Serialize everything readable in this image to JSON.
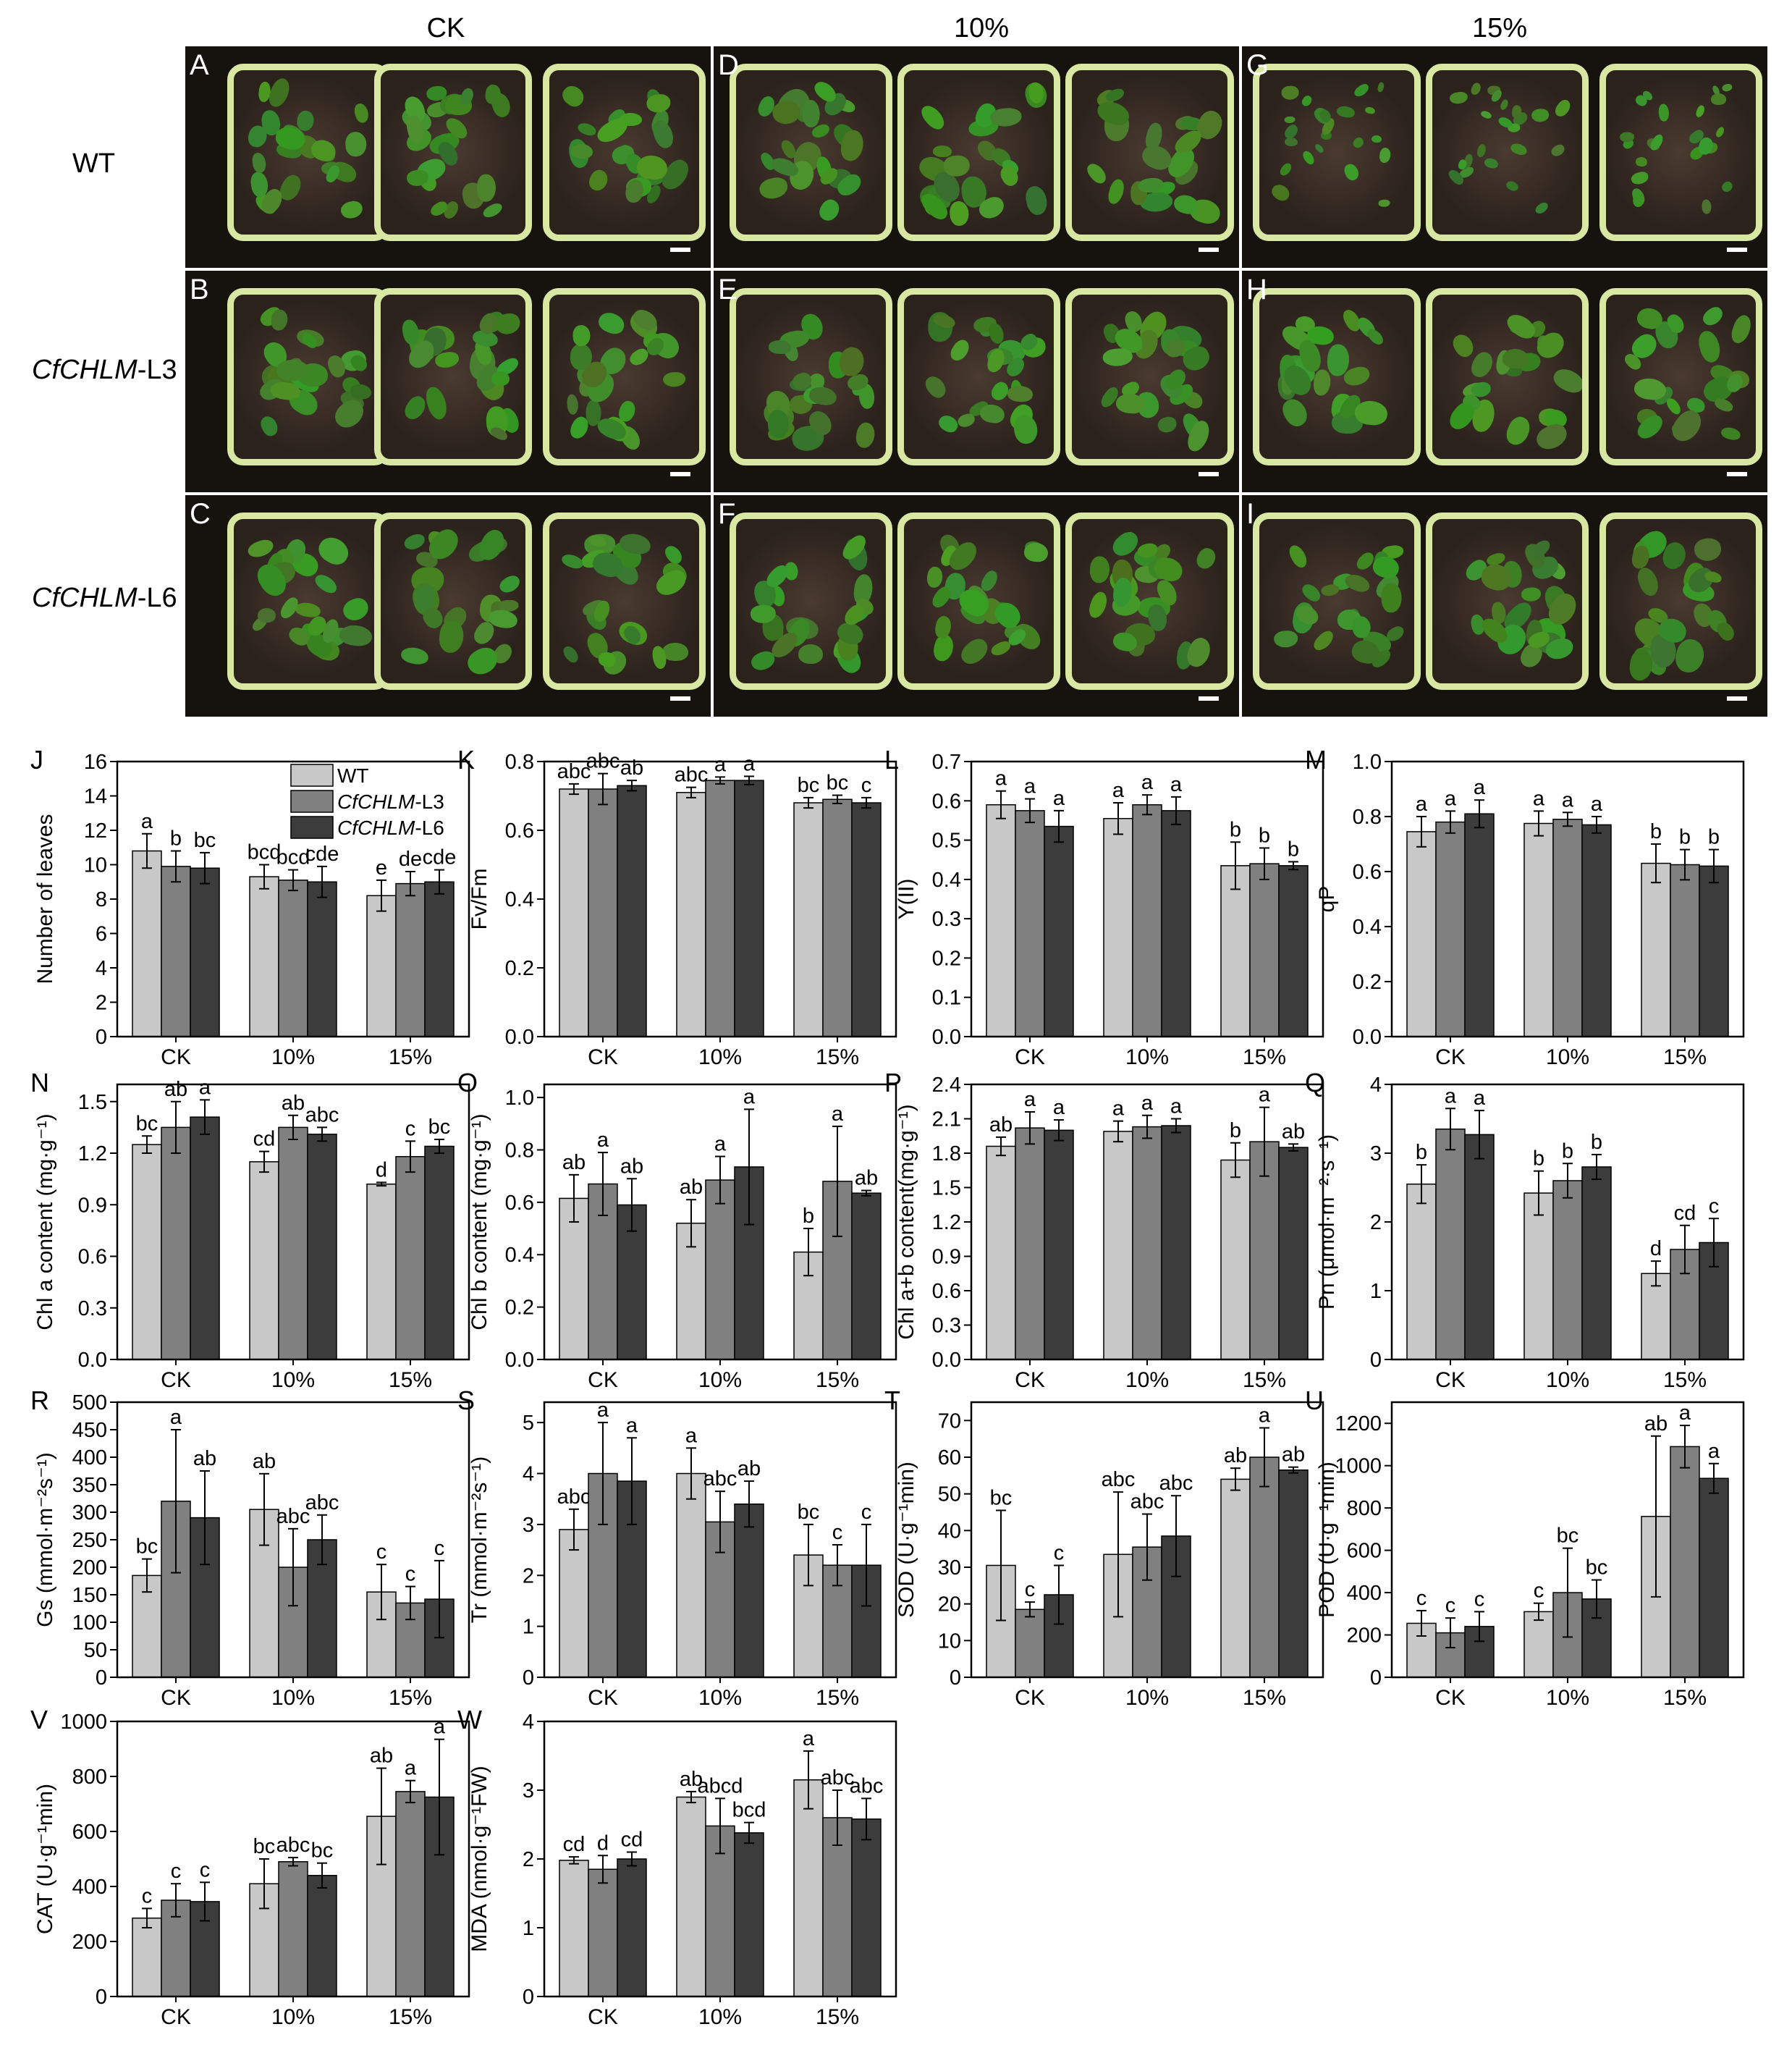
{
  "columns": [
    "CK",
    "10%",
    "15%"
  ],
  "rows": [
    {
      "label": "WT",
      "italic": "",
      "suffix": ""
    },
    {
      "label": "",
      "italic": "CfCHLM",
      "suffix": "-L3"
    },
    {
      "label": "",
      "italic": "CfCHLM",
      "suffix": "-L6"
    }
  ],
  "panels": [
    [
      "A",
      "D",
      "G"
    ],
    [
      "B",
      "E",
      "H"
    ],
    [
      "C",
      "F",
      "I"
    ]
  ],
  "legend": [
    {
      "name": "WT",
      "italic": "",
      "suffix": "",
      "color": "#c8c8c8"
    },
    {
      "name": "CfCHLM-L3",
      "italic": "CfCHLM",
      "suffix": "-L3",
      "color": "#808080"
    },
    {
      "name": "CfCHLM-L6",
      "italic": "CfCHLM",
      "suffix": "-L6",
      "color": "#3c3c3c"
    }
  ],
  "colors": {
    "wt": "#c8c8c8",
    "l3": "#808080",
    "l6": "#3c3c3c",
    "pot": "#d8e8a3",
    "leaf": "#4f8a2e"
  },
  "chart_data": [
    {
      "panel": "J",
      "type": "bar",
      "categories": [
        "CK",
        "10%",
        "15%"
      ],
      "ylabel": "Number of leaves",
      "ylim": [
        0,
        16
      ],
      "ticks": [
        "0",
        "2",
        "4",
        "6",
        "8",
        "10",
        "12",
        "14",
        "16"
      ],
      "legend": true,
      "series": [
        {
          "name": "WT",
          "values": [
            10.8,
            9.3,
            8.2
          ],
          "errors": [
            1.0,
            0.7,
            0.9
          ],
          "letters": [
            "a",
            "bcd",
            "e"
          ]
        },
        {
          "name": "CfCHLM-L3",
          "values": [
            9.9,
            9.1,
            8.9
          ],
          "errors": [
            0.9,
            0.6,
            0.7
          ],
          "letters": [
            "b",
            "bcd",
            "de"
          ]
        },
        {
          "name": "CfCHLM-L6",
          "values": [
            9.8,
            9.0,
            9.0
          ],
          "errors": [
            0.9,
            0.9,
            0.7
          ],
          "letters": [
            "bc",
            "cde",
            "cde"
          ]
        }
      ]
    },
    {
      "panel": "K",
      "type": "bar",
      "categories": [
        "CK",
        "10%",
        "15%"
      ],
      "ylabel": "Fv/Fm",
      "ylim": [
        0,
        0.8
      ],
      "ticks": [
        "0.0",
        "0.2",
        "0.4",
        "0.6",
        "0.8"
      ],
      "series": [
        {
          "name": "WT",
          "values": [
            0.72,
            0.71,
            0.68
          ],
          "errors": [
            0.015,
            0.015,
            0.015
          ],
          "letters": [
            "abc",
            "abc",
            "bc"
          ]
        },
        {
          "name": "CfCHLM-L3",
          "values": [
            0.72,
            0.745,
            0.69
          ],
          "errors": [
            0.045,
            0.01,
            0.012
          ],
          "letters": [
            "abc",
            "a",
            "bc"
          ]
        },
        {
          "name": "CfCHLM-L6",
          "values": [
            0.73,
            0.745,
            0.68
          ],
          "errors": [
            0.015,
            0.012,
            0.015
          ],
          "letters": [
            "ab",
            "a",
            "c"
          ]
        }
      ]
    },
    {
      "panel": "L",
      "type": "bar",
      "categories": [
        "CK",
        "10%",
        "15%"
      ],
      "ylabel": "Y(II)",
      "ylim": [
        0,
        0.7
      ],
      "ticks": [
        "0.0",
        "0.1",
        "0.2",
        "0.3",
        "0.4",
        "0.5",
        "0.6",
        "0.7"
      ],
      "series": [
        {
          "name": "WT",
          "values": [
            0.59,
            0.555,
            0.435
          ],
          "errors": [
            0.035,
            0.04,
            0.06
          ],
          "letters": [
            "a",
            "a",
            "b"
          ]
        },
        {
          "name": "CfCHLM-L3",
          "values": [
            0.575,
            0.59,
            0.44
          ],
          "errors": [
            0.03,
            0.025,
            0.04
          ],
          "letters": [
            "a",
            "a",
            "b"
          ]
        },
        {
          "name": "CfCHLM-L6",
          "values": [
            0.535,
            0.575,
            0.435
          ],
          "errors": [
            0.04,
            0.035,
            0.01
          ],
          "letters": [
            "a",
            "a",
            "b"
          ]
        }
      ]
    },
    {
      "panel": "M",
      "type": "bar",
      "categories": [
        "CK",
        "10%",
        "15%"
      ],
      "ylabel": "qP",
      "ylim": [
        0,
        1.0
      ],
      "ticks": [
        "0.0",
        "0.2",
        "0.4",
        "0.6",
        "0.8",
        "1.0"
      ],
      "series": [
        {
          "name": "WT",
          "values": [
            0.745,
            0.775,
            0.63
          ],
          "errors": [
            0.055,
            0.045,
            0.07
          ],
          "letters": [
            "a",
            "a",
            "b"
          ]
        },
        {
          "name": "CfCHLM-L3",
          "values": [
            0.78,
            0.79,
            0.625
          ],
          "errors": [
            0.04,
            0.025,
            0.055
          ],
          "letters": [
            "a",
            "a",
            "b"
          ]
        },
        {
          "name": "CfCHLM-L6",
          "values": [
            0.81,
            0.77,
            0.62
          ],
          "errors": [
            0.05,
            0.03,
            0.06
          ],
          "letters": [
            "a",
            "a",
            "b"
          ]
        }
      ]
    },
    {
      "panel": "N",
      "type": "bar",
      "categories": [
        "CK",
        "10%",
        "15%"
      ],
      "ylabel": "Chl a content (mg·g⁻¹)",
      "ylim": [
        0,
        1.6
      ],
      "ticks": [
        "0.0",
        "0.3",
        "0.6",
        "0.9",
        "1.2",
        "1.5"
      ],
      "series": [
        {
          "name": "WT",
          "values": [
            1.25,
            1.15,
            1.02
          ],
          "errors": [
            0.05,
            0.06,
            0.01
          ],
          "letters": [
            "bc",
            "cd",
            "d"
          ]
        },
        {
          "name": "CfCHLM-L3",
          "values": [
            1.35,
            1.35,
            1.18
          ],
          "errors": [
            0.15,
            0.07,
            0.09
          ],
          "letters": [
            "ab",
            "ab",
            "c"
          ]
        },
        {
          "name": "CfCHLM-L6",
          "values": [
            1.41,
            1.31,
            1.24
          ],
          "errors": [
            0.1,
            0.04,
            0.04
          ],
          "letters": [
            "a",
            "abc",
            "bc"
          ]
        }
      ]
    },
    {
      "panel": "O",
      "type": "bar",
      "categories": [
        "CK",
        "10%",
        "15%"
      ],
      "ylabel": "Chl b content (mg·g⁻¹)",
      "ylim": [
        0,
        1.05
      ],
      "ticks": [
        "0.0",
        "0.2",
        "0.4",
        "0.6",
        "0.8",
        "1.0"
      ],
      "series": [
        {
          "name": "WT",
          "values": [
            0.615,
            0.52,
            0.41
          ],
          "errors": [
            0.09,
            0.09,
            0.09
          ],
          "letters": [
            "ab",
            "ab",
            "b"
          ]
        },
        {
          "name": "CfCHLM-L3",
          "values": [
            0.67,
            0.685,
            0.68
          ],
          "errors": [
            0.12,
            0.09,
            0.21
          ],
          "letters": [
            "a",
            "a",
            "a"
          ]
        },
        {
          "name": "CfCHLM-L6",
          "values": [
            0.59,
            0.735,
            0.635
          ],
          "errors": [
            0.1,
            0.22,
            0.01
          ],
          "letters": [
            "ab",
            "a",
            "ab"
          ]
        }
      ]
    },
    {
      "panel": "P",
      "type": "bar",
      "categories": [
        "CK",
        "10%",
        "15%"
      ],
      "ylabel": "Chl a+b content(mg·g⁻¹)",
      "ylim": [
        0,
        2.4
      ],
      "ticks": [
        "0.0",
        "0.3",
        "0.6",
        "0.9",
        "1.2",
        "1.5",
        "1.8",
        "2.1",
        "2.4"
      ],
      "series": [
        {
          "name": "WT",
          "values": [
            1.86,
            1.99,
            1.74
          ],
          "errors": [
            0.08,
            0.09,
            0.15
          ],
          "letters": [
            "ab",
            "a",
            "b"
          ]
        },
        {
          "name": "CfCHLM-L3",
          "values": [
            2.02,
            2.03,
            1.9
          ],
          "errors": [
            0.14,
            0.1,
            0.3
          ],
          "letters": [
            "a",
            "a",
            "a"
          ]
        },
        {
          "name": "CfCHLM-L6",
          "values": [
            2.0,
            2.04,
            1.85
          ],
          "errors": [
            0.09,
            0.06,
            0.03
          ],
          "letters": [
            "a",
            "a",
            "ab"
          ]
        }
      ]
    },
    {
      "panel": "Q",
      "type": "bar",
      "categories": [
        "CK",
        "10%",
        "15%"
      ],
      "ylabel": "Pn (μmol·m⁻²·s⁻¹)",
      "ylim": [
        0,
        4
      ],
      "ticks": [
        "0",
        "1",
        "2",
        "3",
        "4"
      ],
      "series": [
        {
          "name": "WT",
          "values": [
            2.55,
            2.42,
            1.25
          ],
          "errors": [
            0.28,
            0.32,
            0.18
          ],
          "letters": [
            "b",
            "b",
            "d"
          ]
        },
        {
          "name": "CfCHLM-L3",
          "values": [
            3.35,
            2.6,
            1.6
          ],
          "errors": [
            0.3,
            0.25,
            0.35
          ],
          "letters": [
            "a",
            "b",
            "cd"
          ]
        },
        {
          "name": "CfCHLM-L6",
          "values": [
            3.27,
            2.8,
            1.7
          ],
          "errors": [
            0.35,
            0.18,
            0.35
          ],
          "letters": [
            "a",
            "b",
            "c"
          ]
        }
      ]
    },
    {
      "panel": "R",
      "type": "bar",
      "categories": [
        "CK",
        "10%",
        "15%"
      ],
      "ylabel": "Gs (mmol·m⁻²s⁻¹)",
      "ylim": [
        0,
        500
      ],
      "ticks": [
        "0",
        "50",
        "100",
        "150",
        "200",
        "250",
        "300",
        "350",
        "400",
        "450",
        "500"
      ],
      "series": [
        {
          "name": "WT",
          "values": [
            185,
            305,
            155
          ],
          "errors": [
            30,
            65,
            50
          ],
          "letters": [
            "bc",
            "ab",
            "c"
          ]
        },
        {
          "name": "CfCHLM-L3",
          "values": [
            320,
            200,
            135
          ],
          "errors": [
            130,
            70,
            30
          ],
          "letters": [
            "a",
            "abc",
            "c"
          ]
        },
        {
          "name": "CfCHLM-L6",
          "values": [
            290,
            250,
            142
          ],
          "errors": [
            85,
            45,
            70
          ],
          "letters": [
            "ab",
            "abc",
            "c"
          ]
        }
      ]
    },
    {
      "panel": "S",
      "type": "bar",
      "categories": [
        "CK",
        "10%",
        "15%"
      ],
      "ylabel": "Tr (mmol·m⁻²s⁻¹)",
      "ylim": [
        0,
        5.4
      ],
      "ticks": [
        "0",
        "1",
        "2",
        "3",
        "4",
        "5"
      ],
      "series": [
        {
          "name": "WT",
          "values": [
            2.9,
            4.0,
            2.4
          ],
          "errors": [
            0.4,
            0.5,
            0.6
          ],
          "letters": [
            "abc",
            "a",
            "bc"
          ]
        },
        {
          "name": "CfCHLM-L3",
          "values": [
            4.0,
            3.05,
            2.2
          ],
          "errors": [
            1.0,
            0.6,
            0.4
          ],
          "letters": [
            "a",
            "abc",
            "c"
          ]
        },
        {
          "name": "CfCHLM-L6",
          "values": [
            3.85,
            3.4,
            2.2
          ],
          "errors": [
            0.85,
            0.45,
            0.8
          ],
          "letters": [
            "a",
            "ab",
            "c"
          ]
        }
      ]
    },
    {
      "panel": "T",
      "type": "bar",
      "categories": [
        "CK",
        "10%",
        "15%"
      ],
      "ylabel": "SOD (U·g⁻¹min)",
      "ylim": [
        0,
        75
      ],
      "ticks": [
        "0",
        "10",
        "20",
        "30",
        "40",
        "50",
        "60",
        "70"
      ],
      "series": [
        {
          "name": "WT",
          "values": [
            30.5,
            33.5,
            54
          ],
          "errors": [
            15,
            17,
            3
          ],
          "letters": [
            "bc",
            "abc",
            "ab"
          ]
        },
        {
          "name": "CfCHLM-L3",
          "values": [
            18.5,
            35.5,
            60
          ],
          "errors": [
            2,
            9,
            8
          ],
          "letters": [
            "c",
            "abc",
            "a"
          ]
        },
        {
          "name": "CfCHLM-L6",
          "values": [
            22.5,
            38.5,
            56.5
          ],
          "errors": [
            8,
            11,
            0.8
          ],
          "letters": [
            "c",
            "abc",
            "ab"
          ]
        }
      ]
    },
    {
      "panel": "U",
      "type": "bar",
      "categories": [
        "CK",
        "10%",
        "15%"
      ],
      "ylabel": "POD (U·g⁻¹min)",
      "ylim": [
        0,
        1300
      ],
      "ticks": [
        "0",
        "200",
        "400",
        "600",
        "800",
        "1000",
        "1200"
      ],
      "series": [
        {
          "name": "WT",
          "values": [
            255,
            310,
            760
          ],
          "errors": [
            60,
            40,
            380
          ],
          "letters": [
            "c",
            "c",
            "ab"
          ]
        },
        {
          "name": "CfCHLM-L3",
          "values": [
            210,
            400,
            1090
          ],
          "errors": [
            70,
            210,
            100
          ],
          "letters": [
            "c",
            "bc",
            "a"
          ]
        },
        {
          "name": "CfCHLM-L6",
          "values": [
            240,
            370,
            940
          ],
          "errors": [
            70,
            90,
            70
          ],
          "letters": [
            "c",
            "bc",
            "a"
          ]
        }
      ]
    },
    {
      "panel": "V",
      "type": "bar",
      "categories": [
        "CK",
        "10%",
        "15%"
      ],
      "ylabel": "CAT (U·g⁻¹min)",
      "ylim": [
        0,
        1000
      ],
      "ticks": [
        "0",
        "200",
        "400",
        "600",
        "800",
        "1000"
      ],
      "series": [
        {
          "name": "WT",
          "values": [
            285,
            410,
            655
          ],
          "errors": [
            35,
            90,
            175
          ],
          "letters": [
            "c",
            "bc",
            "ab"
          ]
        },
        {
          "name": "CfCHLM-L3",
          "values": [
            350,
            490,
            745
          ],
          "errors": [
            60,
            15,
            40
          ],
          "letters": [
            "c",
            "abc",
            "a"
          ]
        },
        {
          "name": "CfCHLM-L6",
          "values": [
            345,
            440,
            725
          ],
          "errors": [
            70,
            45,
            210
          ],
          "letters": [
            "c",
            "bc",
            "a"
          ]
        }
      ]
    },
    {
      "panel": "W",
      "type": "bar",
      "categories": [
        "CK",
        "10%",
        "15%"
      ],
      "ylabel": "MDA (nmol·g⁻¹FW)",
      "ylim": [
        0,
        4
      ],
      "ticks": [
        "0",
        "1",
        "2",
        "3",
        "4"
      ],
      "series": [
        {
          "name": "WT",
          "values": [
            1.98,
            2.9,
            3.15
          ],
          "errors": [
            0.05,
            0.08,
            0.42
          ],
          "letters": [
            "cd",
            "ab",
            "a"
          ]
        },
        {
          "name": "CfCHLM-L3",
          "values": [
            1.85,
            2.48,
            2.6
          ],
          "errors": [
            0.2,
            0.4,
            0.4
          ],
          "letters": [
            "d",
            "abcd",
            "abc"
          ]
        },
        {
          "name": "CfCHLM-L6",
          "values": [
            2.0,
            2.38,
            2.58
          ],
          "errors": [
            0.1,
            0.15,
            0.3
          ],
          "letters": [
            "cd",
            "bcd",
            "abc"
          ]
        }
      ]
    }
  ]
}
